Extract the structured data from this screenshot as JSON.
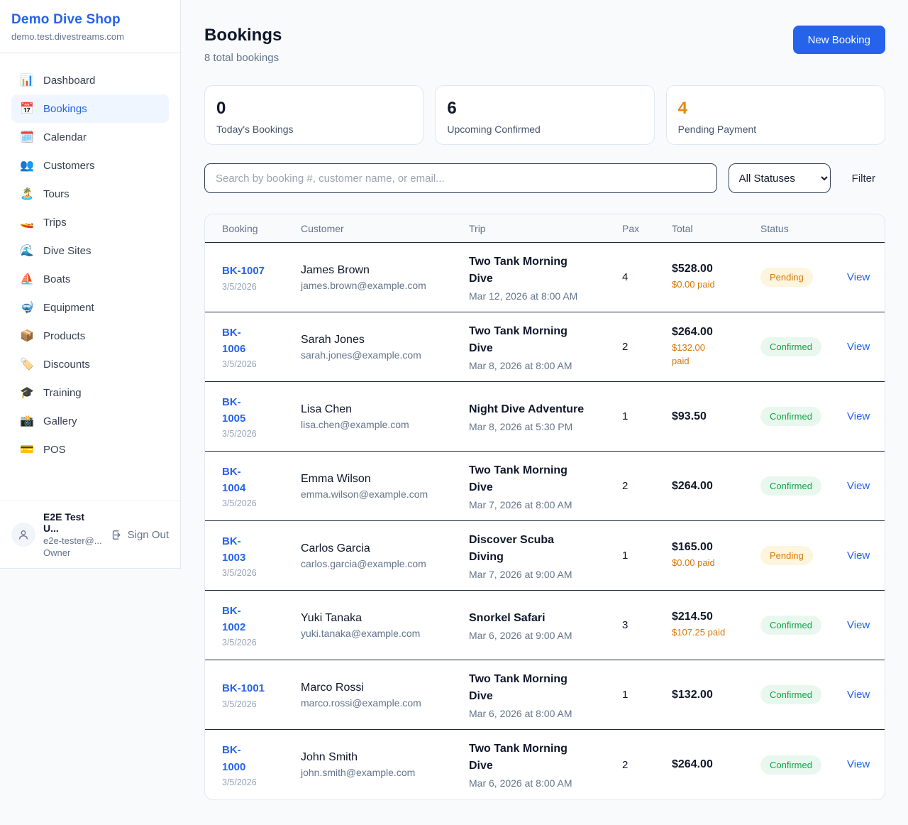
{
  "colors": {
    "accent": "#2563eb",
    "pending_text": "#d97706",
    "confirmed_text": "#16a34a"
  },
  "status_styles": {
    "Pending": {
      "bg": "#fdf5dd",
      "text": "#d97706"
    },
    "Confirmed": {
      "bg": "#e8f8ee",
      "text": "#16a34a"
    }
  },
  "sidebar": {
    "shop_name": "Demo Dive Shop",
    "shop_domain": "demo.test.divestreams.com",
    "items": [
      {
        "icon": "📊",
        "label": "Dashboard",
        "active": false
      },
      {
        "icon": "📅",
        "label": "Bookings",
        "active": true
      },
      {
        "icon": "🗓️",
        "label": "Calendar",
        "active": false
      },
      {
        "icon": "👥",
        "label": "Customers",
        "active": false
      },
      {
        "icon": "🏝️",
        "label": "Tours",
        "active": false
      },
      {
        "icon": "🚤",
        "label": "Trips",
        "active": false
      },
      {
        "icon": "🌊",
        "label": "Dive Sites",
        "active": false
      },
      {
        "icon": "⛵",
        "label": "Boats",
        "active": false
      },
      {
        "icon": "🤿",
        "label": "Equipment",
        "active": false
      },
      {
        "icon": "📦",
        "label": "Products",
        "active": false
      },
      {
        "icon": "🏷️",
        "label": "Discounts",
        "active": false
      },
      {
        "icon": "🎓",
        "label": "Training",
        "active": false
      },
      {
        "icon": "📸",
        "label": "Gallery",
        "active": false
      },
      {
        "icon": "💳",
        "label": "POS",
        "active": false
      }
    ],
    "user": {
      "name": "E2E Test U...",
      "email": "e2e-tester@...",
      "role": "Owner",
      "sign_out_label": "Sign Out"
    }
  },
  "header": {
    "title": "Bookings",
    "subtitle": "8 total bookings",
    "new_booking_label": "New Booking"
  },
  "stats": [
    {
      "value": "0",
      "label": "Today's Bookings",
      "color": "#0f172a"
    },
    {
      "value": "6",
      "label": "Upcoming Confirmed",
      "color": "#0f172a"
    },
    {
      "value": "4",
      "label": "Pending Payment",
      "color": "#e08914"
    }
  ],
  "controls": {
    "search_placeholder": "Search by booking #, customer name, or email...",
    "status_filter_value": "All Statuses",
    "filter_label": "Filter"
  },
  "table": {
    "columns": [
      "Booking",
      "Customer",
      "Trip",
      "Pax",
      "Total",
      "Status"
    ],
    "view_label": "View",
    "rows": [
      {
        "id": "BK-1007",
        "date": "3/5/2026",
        "customer": "James Brown",
        "email": "james.brown@example.com",
        "trip": "Two Tank Morning\nDive",
        "trip_time": "Mar 12, 2026 at 8:00 AM",
        "pax": "4",
        "total": "$528.00",
        "paid": "$0.00 paid",
        "status": "Pending"
      },
      {
        "id": "BK-\n1006",
        "date": "3/5/2026",
        "customer": "Sarah Jones",
        "email": "sarah.jones@example.com",
        "trip": "Two Tank Morning\nDive",
        "trip_time": "Mar 8, 2026 at 8:00 AM",
        "pax": "2",
        "total": "$264.00",
        "paid": "$132.00\npaid",
        "status": "Confirmed"
      },
      {
        "id": "BK-\n1005",
        "date": "3/5/2026",
        "customer": "Lisa Chen",
        "email": "lisa.chen@example.com",
        "trip": "Night Dive Adventure",
        "trip_time": "Mar 8, 2026 at 5:30 PM",
        "pax": "1",
        "total": "$93.50",
        "paid": "",
        "status": "Confirmed"
      },
      {
        "id": "BK-\n1004",
        "date": "3/5/2026",
        "customer": "Emma Wilson",
        "email": "emma.wilson@example.com",
        "trip": "Two Tank Morning\nDive",
        "trip_time": "Mar 7, 2026 at 8:00 AM",
        "pax": "2",
        "total": "$264.00",
        "paid": "",
        "status": "Confirmed"
      },
      {
        "id": "BK-\n1003",
        "date": "3/5/2026",
        "customer": "Carlos Garcia",
        "email": "carlos.garcia@example.com",
        "trip": "Discover Scuba\nDiving",
        "trip_time": "Mar 7, 2026 at 9:00 AM",
        "pax": "1",
        "total": "$165.00",
        "paid": "$0.00 paid",
        "status": "Pending"
      },
      {
        "id": "BK-\n1002",
        "date": "3/5/2026",
        "customer": "Yuki Tanaka",
        "email": "yuki.tanaka@example.com",
        "trip": "Snorkel Safari",
        "trip_time": "Mar 6, 2026 at 9:00 AM",
        "pax": "3",
        "total": "$214.50",
        "paid": "$107.25 paid",
        "status": "Confirmed"
      },
      {
        "id": "BK-1001",
        "date": "3/5/2026",
        "customer": "Marco Rossi",
        "email": "marco.rossi@example.com",
        "trip": "Two Tank Morning\nDive",
        "trip_time": "Mar 6, 2026 at 8:00 AM",
        "pax": "1",
        "total": "$132.00",
        "paid": "",
        "status": "Confirmed"
      },
      {
        "id": "BK-\n1000",
        "date": "3/5/2026",
        "customer": "John Smith",
        "email": "john.smith@example.com",
        "trip": "Two Tank Morning\nDive",
        "trip_time": "Mar 6, 2026 at 8:00 AM",
        "pax": "2",
        "total": "$264.00",
        "paid": "",
        "status": "Confirmed"
      }
    ]
  }
}
